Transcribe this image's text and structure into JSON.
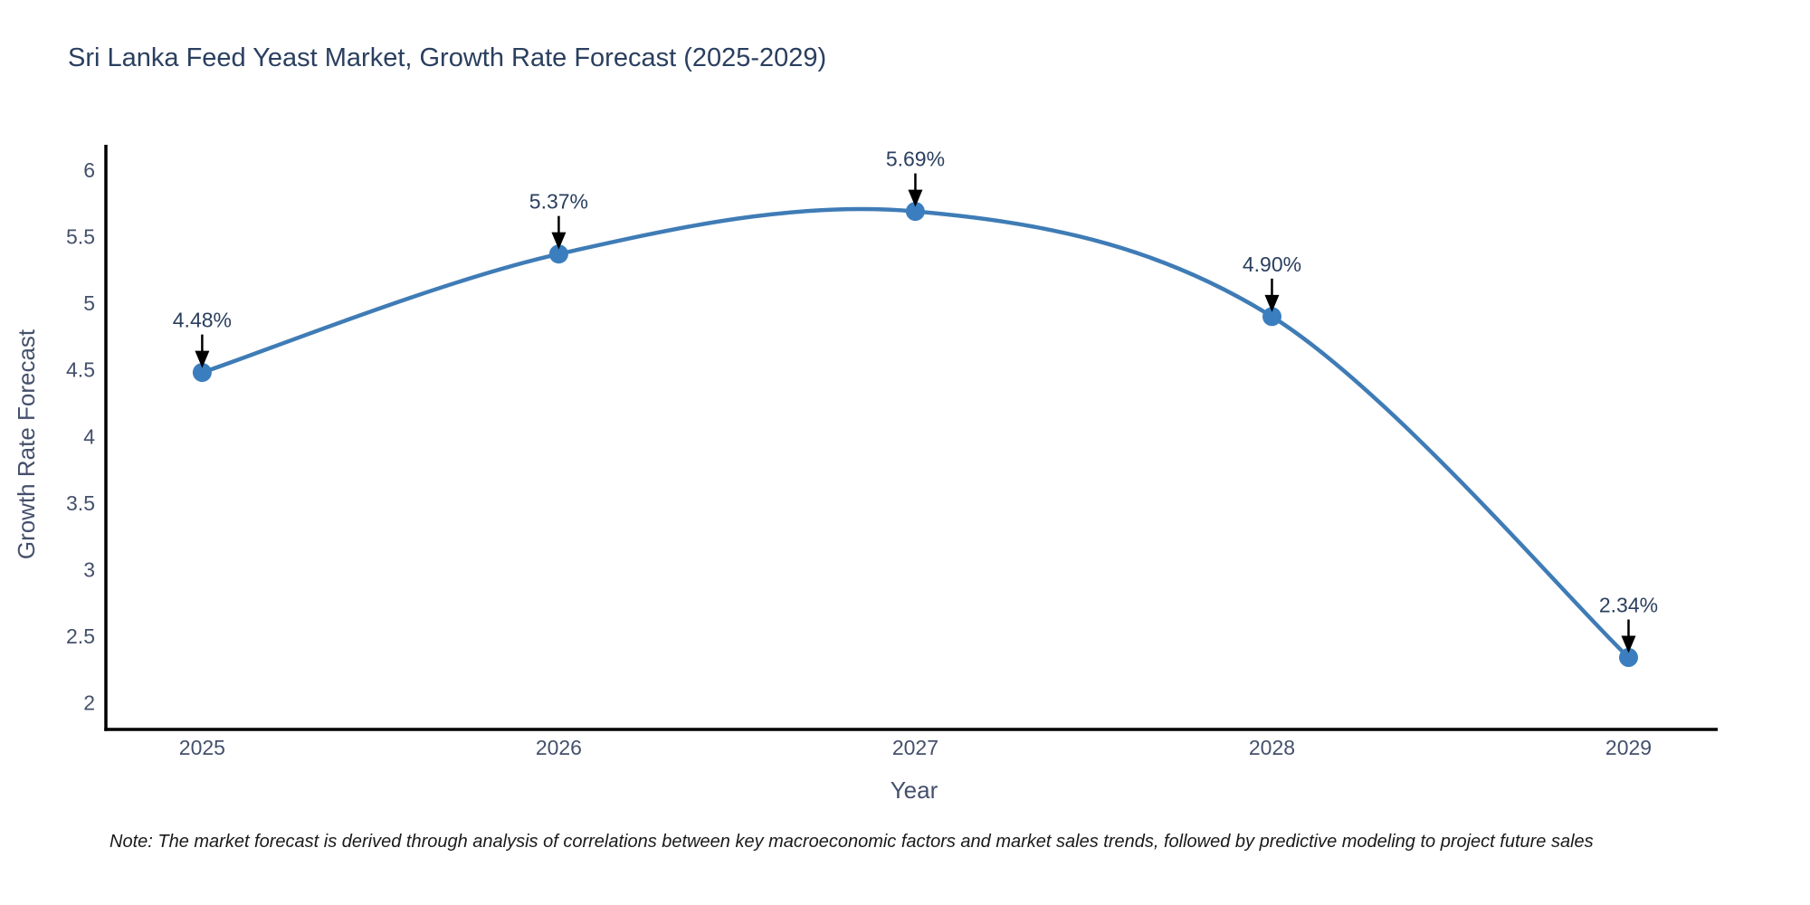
{
  "chart_data": {
    "type": "line",
    "title": "Sri Lanka Feed Yeast Market, Growth Rate Forecast (2025-2029)",
    "xlabel": "Year",
    "ylabel": "Growth Rate Forecast",
    "x": [
      2025,
      2026,
      2027,
      2028,
      2029
    ],
    "series": [
      {
        "name": "Growth Rate Forecast",
        "values": [
          4.48,
          5.37,
          5.69,
          4.9,
          2.34
        ],
        "point_labels": [
          "4.48%",
          "5.37%",
          "5.69%",
          "4.90%",
          "2.34%"
        ]
      }
    ],
    "yticks": [
      2,
      2.5,
      3,
      3.5,
      4,
      4.5,
      5,
      5.5,
      6
    ],
    "ytick_labels": [
      "2",
      "2.5",
      "3",
      "3.5",
      "4",
      "4.5",
      "5",
      "5.5",
      "6"
    ],
    "xtick_labels": [
      "2025",
      "2026",
      "2027",
      "2028",
      "2029"
    ],
    "xlim": [
      2024.73,
      2029.25
    ],
    "ylim": [
      1.8,
      6.19
    ],
    "grid": false,
    "legend_position": "none",
    "curve": "spline",
    "colors": {
      "line": "#3f7cb6",
      "marker": "#3a7ebf",
      "axis": "#000000",
      "tick_text": "#44506b",
      "title_text": "#2a3f5f",
      "annotation_text": "#2a3f5f",
      "annotation_arrow": "#000000"
    }
  },
  "note": {
    "text": "Note: The market forecast is derived through analysis of correlations between key macroeconomic factors and market sales trends, followed by predictive modeling to project future sales"
  }
}
